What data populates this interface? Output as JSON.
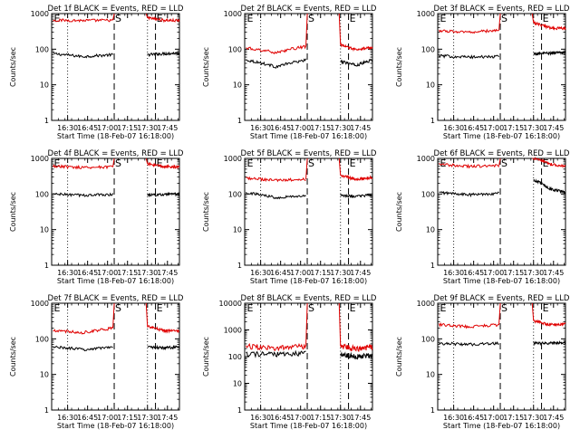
{
  "chart_data": [
    {
      "type": "line",
      "title": "Det 1f BLACK = Events, RED = LLD",
      "xlabel": "Start Time (18-Feb-07 16:18:00)",
      "ylabel": "Counts/sec",
      "yscale": "log",
      "ylim": [
        1,
        1000
      ],
      "xlim": [
        16.3,
        17.9
      ],
      "x_ticks": [
        "16:30",
        "16:45",
        "17:00",
        "17:15",
        "17:30",
        "17:45"
      ],
      "y_ticks": [
        "1",
        "10",
        "100",
        "1000"
      ],
      "markers": [
        {
          "label": "E",
          "time": "16:19"
        },
        {
          "label": "S",
          "time": "17:05"
        },
        {
          "label": "E",
          "time": "17:36"
        }
      ],
      "series": [
        {
          "name": "Events",
          "color": "#000000",
          "segments": [
            {
              "x_start": "16:19",
              "x_end": "17:04",
              "y_start": 75,
              "y_mid": 62,
              "y_end": 70
            },
            {
              "x_start": "17:30",
              "x_end": "17:54",
              "y_start": 70,
              "y_mid": 75,
              "y_end": 78
            }
          ]
        },
        {
          "name": "LLD",
          "color": "#e00000",
          "segments": [
            {
              "x_start": "16:19",
              "x_end": "17:04",
              "y_start": 650,
              "y_mid": 640,
              "y_end": 650
            },
            {
              "x_start": "17:30",
              "x_end": "17:54",
              "y_start": 760,
              "y_mid": 650,
              "y_end": 630
            }
          ]
        }
      ]
    },
    {
      "type": "line",
      "title": "Det 2f BLACK = Events, RED = LLD",
      "xlabel": "Start Time (18-Feb-07 16:18:00)",
      "ylabel": "Counts/sec",
      "yscale": "log",
      "ylim": [
        1,
        1000
      ],
      "xlim": [
        16.3,
        17.9
      ],
      "x_ticks": [
        "16:30",
        "16:45",
        "17:00",
        "17:15",
        "17:30",
        "17:45"
      ],
      "y_ticks": [
        "1",
        "10",
        "100",
        "1000"
      ],
      "markers": [
        {
          "label": "E",
          "time": "16:19"
        },
        {
          "label": "S",
          "time": "17:05"
        },
        {
          "label": "E",
          "time": "17:36"
        }
      ],
      "series": [
        {
          "name": "Events",
          "color": "#000000",
          "segments": [
            {
              "x_start": "16:19",
              "x_end": "17:04",
              "y_start": 50,
              "y_mid": 32,
              "y_end": 50
            },
            {
              "x_start": "17:30",
              "x_end": "17:54",
              "y_start": 45,
              "y_mid": 35,
              "y_end": 50
            }
          ]
        },
        {
          "name": "LLD",
          "color": "#e00000",
          "segments": [
            {
              "x_start": "16:19",
              "x_end": "17:04",
              "y_start": 110,
              "y_mid": 80,
              "y_end": 120
            },
            {
              "x_start": "17:30",
              "x_end": "17:54",
              "y_start": 130,
              "y_mid": 95,
              "y_end": 115
            }
          ]
        }
      ]
    },
    {
      "type": "line",
      "title": "Det 3f BLACK = Events, RED = LLD",
      "xlabel": "Start Time (18-Feb-07 16:18:00)",
      "ylabel": "Counts/sec",
      "yscale": "log",
      "ylim": [
        1,
        1000
      ],
      "xlim": [
        16.3,
        17.9
      ],
      "x_ticks": [
        "16:30",
        "16:45",
        "17:00",
        "17:15",
        "17:30",
        "17:45"
      ],
      "y_ticks": [
        "1",
        "10",
        "100",
        "1000"
      ],
      "markers": [
        {
          "label": "E",
          "time": "16:19"
        },
        {
          "label": "S",
          "time": "17:05"
        },
        {
          "label": "E",
          "time": "17:36"
        }
      ],
      "series": [
        {
          "name": "Events",
          "color": "#000000",
          "segments": [
            {
              "x_start": "16:19",
              "x_end": "17:04",
              "y_start": 65,
              "y_mid": 60,
              "y_end": 62
            },
            {
              "x_start": "17:30",
              "x_end": "17:54",
              "y_start": 75,
              "y_mid": 78,
              "y_end": 82
            }
          ]
        },
        {
          "name": "LLD",
          "color": "#e00000",
          "segments": [
            {
              "x_start": "16:19",
              "x_end": "17:04",
              "y_start": 330,
              "y_mid": 300,
              "y_end": 340
            },
            {
              "x_start": "17:30",
              "x_end": "17:54",
              "y_start": 550,
              "y_mid": 400,
              "y_end": 380
            }
          ]
        }
      ]
    },
    {
      "type": "line",
      "title": "Det 4f BLACK = Events, RED = LLD",
      "xlabel": "Start Time (18-Feb-07 16:18:00)",
      "ylabel": "Counts/sec",
      "yscale": "log",
      "ylim": [
        1,
        1000
      ],
      "xlim": [
        16.3,
        17.9
      ],
      "x_ticks": [
        "16:30",
        "16:45",
        "17:00",
        "17:15",
        "17:30",
        "17:45"
      ],
      "y_ticks": [
        "1",
        "10",
        "100",
        "1000"
      ],
      "markers": [
        {
          "label": "E",
          "time": "16:19"
        },
        {
          "label": "S",
          "time": "17:05"
        },
        {
          "label": "E",
          "time": "17:36"
        }
      ],
      "series": [
        {
          "name": "Events",
          "color": "#000000",
          "segments": [
            {
              "x_start": "16:19",
              "x_end": "17:04",
              "y_start": 100,
              "y_mid": 92,
              "y_end": 98
            },
            {
              "x_start": "17:30",
              "x_end": "17:54",
              "y_start": 95,
              "y_mid": 95,
              "y_end": 100
            }
          ]
        },
        {
          "name": "LLD",
          "color": "#e00000",
          "segments": [
            {
              "x_start": "16:19",
              "x_end": "17:04",
              "y_start": 600,
              "y_mid": 560,
              "y_end": 580
            },
            {
              "x_start": "17:30",
              "x_end": "17:54",
              "y_start": 700,
              "y_mid": 580,
              "y_end": 580
            }
          ]
        }
      ]
    },
    {
      "type": "line",
      "title": "Det 5f BLACK = Events, RED = LLD",
      "xlabel": "Start Time (18-Feb-07 16:18:00)",
      "ylabel": "Counts/sec",
      "yscale": "log",
      "ylim": [
        1,
        1000
      ],
      "xlim": [
        16.3,
        17.9
      ],
      "x_ticks": [
        "16:30",
        "16:45",
        "17:00",
        "17:15",
        "17:30",
        "17:45"
      ],
      "y_ticks": [
        "1",
        "10",
        "100",
        "1000"
      ],
      "markers": [
        {
          "label": "E",
          "time": "16:19"
        },
        {
          "label": "S",
          "time": "17:05"
        },
        {
          "label": "E",
          "time": "17:36"
        }
      ],
      "series": [
        {
          "name": "Events",
          "color": "#000000",
          "segments": [
            {
              "x_start": "16:19",
              "x_end": "17:04",
              "y_start": 110,
              "y_mid": 80,
              "y_end": 90
            },
            {
              "x_start": "17:30",
              "x_end": "17:54",
              "y_start": 90,
              "y_mid": 85,
              "y_end": 95
            }
          ]
        },
        {
          "name": "LLD",
          "color": "#e00000",
          "segments": [
            {
              "x_start": "16:19",
              "x_end": "17:04",
              "y_start": 280,
              "y_mid": 240,
              "y_end": 260
            },
            {
              "x_start": "17:30",
              "x_end": "17:54",
              "y_start": 330,
              "y_mid": 260,
              "y_end": 290
            }
          ]
        }
      ]
    },
    {
      "type": "line",
      "title": "Det 6f BLACK = Events, RED = LLD",
      "xlabel": "Start Time (18-Feb-07 16:18:00)",
      "ylabel": "Counts/sec",
      "yscale": "log",
      "ylim": [
        1,
        1000
      ],
      "xlim": [
        16.3,
        17.9
      ],
      "x_ticks": [
        "16:30",
        "16:45",
        "17:00",
        "17:15",
        "17:30",
        "17:45"
      ],
      "y_ticks": [
        "1",
        "10",
        "100",
        "1000"
      ],
      "markers": [
        {
          "label": "E",
          "time": "16:19"
        },
        {
          "label": "S",
          "time": "17:05"
        },
        {
          "label": "E",
          "time": "17:36"
        }
      ],
      "series": [
        {
          "name": "Events",
          "color": "#000000",
          "segments": [
            {
              "x_start": "16:19",
              "x_end": "17:04",
              "y_start": 110,
              "y_mid": 95,
              "y_end": 105
            },
            {
              "x_start": "17:30",
              "x_end": "17:54",
              "y_start": 250,
              "y_mid": 140,
              "y_end": 110
            }
          ]
        },
        {
          "name": "LLD",
          "color": "#e00000",
          "segments": [
            {
              "x_start": "16:19",
              "x_end": "17:04",
              "y_start": 680,
              "y_mid": 600,
              "y_end": 620
            },
            {
              "x_start": "17:30",
              "x_end": "17:54",
              "y_start": 1000,
              "y_mid": 700,
              "y_end": 600
            }
          ]
        }
      ]
    },
    {
      "type": "line",
      "title": "Det 7f BLACK = Events, RED = LLD",
      "xlabel": "Start Time (18-Feb-07 16:18:00)",
      "ylabel": "Counts/sec",
      "yscale": "log",
      "ylim": [
        1,
        1000
      ],
      "xlim": [
        16.3,
        17.9
      ],
      "x_ticks": [
        "16:30",
        "16:45",
        "17:00",
        "17:15",
        "17:30",
        "17:45"
      ],
      "y_ticks": [
        "1",
        "10",
        "100",
        "1000"
      ],
      "markers": [
        {
          "label": "E",
          "time": "16:19"
        },
        {
          "label": "S",
          "time": "17:05"
        },
        {
          "label": "E",
          "time": "17:36"
        }
      ],
      "series": [
        {
          "name": "Events",
          "color": "#000000",
          "segments": [
            {
              "x_start": "16:19",
              "x_end": "17:04",
              "y_start": 60,
              "y_mid": 50,
              "y_end": 60
            },
            {
              "x_start": "17:30",
              "x_end": "17:54",
              "y_start": 60,
              "y_mid": 55,
              "y_end": 60
            }
          ]
        },
        {
          "name": "LLD",
          "color": "#e00000",
          "segments": [
            {
              "x_start": "16:19",
              "x_end": "17:04",
              "y_start": 170,
              "y_mid": 150,
              "y_end": 200
            },
            {
              "x_start": "17:30",
              "x_end": "17:54",
              "y_start": 220,
              "y_mid": 170,
              "y_end": 165
            }
          ]
        }
      ]
    },
    {
      "type": "line",
      "title": "Det 8f BLACK = Events, RED = LLD",
      "xlabel": "Start Time (18-Feb-07 16:18:00)",
      "ylabel": "Counts/sec",
      "yscale": "log",
      "ylim": [
        1,
        10000
      ],
      "xlim": [
        16.3,
        17.9
      ],
      "x_ticks": [
        "16:30",
        "16:45",
        "17:00",
        "17:15",
        "17:30",
        "17:45"
      ],
      "y_ticks": [
        "1",
        "10",
        "100",
        "1000",
        "10000"
      ],
      "markers": [
        {
          "label": "E",
          "time": "16:19"
        },
        {
          "label": "S",
          "time": "17:05"
        },
        {
          "label": "E",
          "time": "17:36"
        }
      ],
      "series": [
        {
          "name": "Events",
          "color": "#000000",
          "segments": [
            {
              "x_start": "16:19",
              "x_end": "17:04",
              "y_start": 130,
              "y_mid": 120,
              "y_end": 140
            },
            {
              "x_start": "17:30",
              "x_end": "17:54",
              "y_start": 120,
              "y_mid": 100,
              "y_end": 120
            }
          ]
        },
        {
          "name": "LLD",
          "color": "#e00000",
          "segments": [
            {
              "x_start": "16:19",
              "x_end": "17:04",
              "y_start": 250,
              "y_mid": 210,
              "y_end": 250
            },
            {
              "x_start": "17:30",
              "x_end": "17:54",
              "y_start": 250,
              "y_mid": 200,
              "y_end": 230
            }
          ]
        }
      ]
    },
    {
      "type": "line",
      "title": "Det 9f BLACK = Events, RED = LLD",
      "xlabel": "Start Time (18-Feb-07 16:18:00)",
      "ylabel": "Counts/sec",
      "yscale": "log",
      "ylim": [
        1,
        1000
      ],
      "xlim": [
        16.3,
        17.9
      ],
      "x_ticks": [
        "16:30",
        "16:45",
        "17:00",
        "17:15",
        "17:30",
        "17:45"
      ],
      "y_ticks": [
        "1",
        "10",
        "100",
        "1000"
      ],
      "markers": [
        {
          "label": "E",
          "time": "16:19"
        },
        {
          "label": "S",
          "time": "17:05"
        },
        {
          "label": "E",
          "time": "17:36"
        }
      ],
      "series": [
        {
          "name": "Events",
          "color": "#000000",
          "segments": [
            {
              "x_start": "16:19",
              "x_end": "17:04",
              "y_start": 75,
              "y_mid": 70,
              "y_end": 75
            },
            {
              "x_start": "17:30",
              "x_end": "17:54",
              "y_start": 75,
              "y_mid": 75,
              "y_end": 78
            }
          ]
        },
        {
          "name": "LLD",
          "color": "#e00000",
          "segments": [
            {
              "x_start": "16:19",
              "x_end": "17:04",
              "y_start": 250,
              "y_mid": 220,
              "y_end": 250
            },
            {
              "x_start": "17:30",
              "x_end": "17:54",
              "y_start": 320,
              "y_mid": 250,
              "y_end": 260
            }
          ]
        }
      ]
    }
  ]
}
